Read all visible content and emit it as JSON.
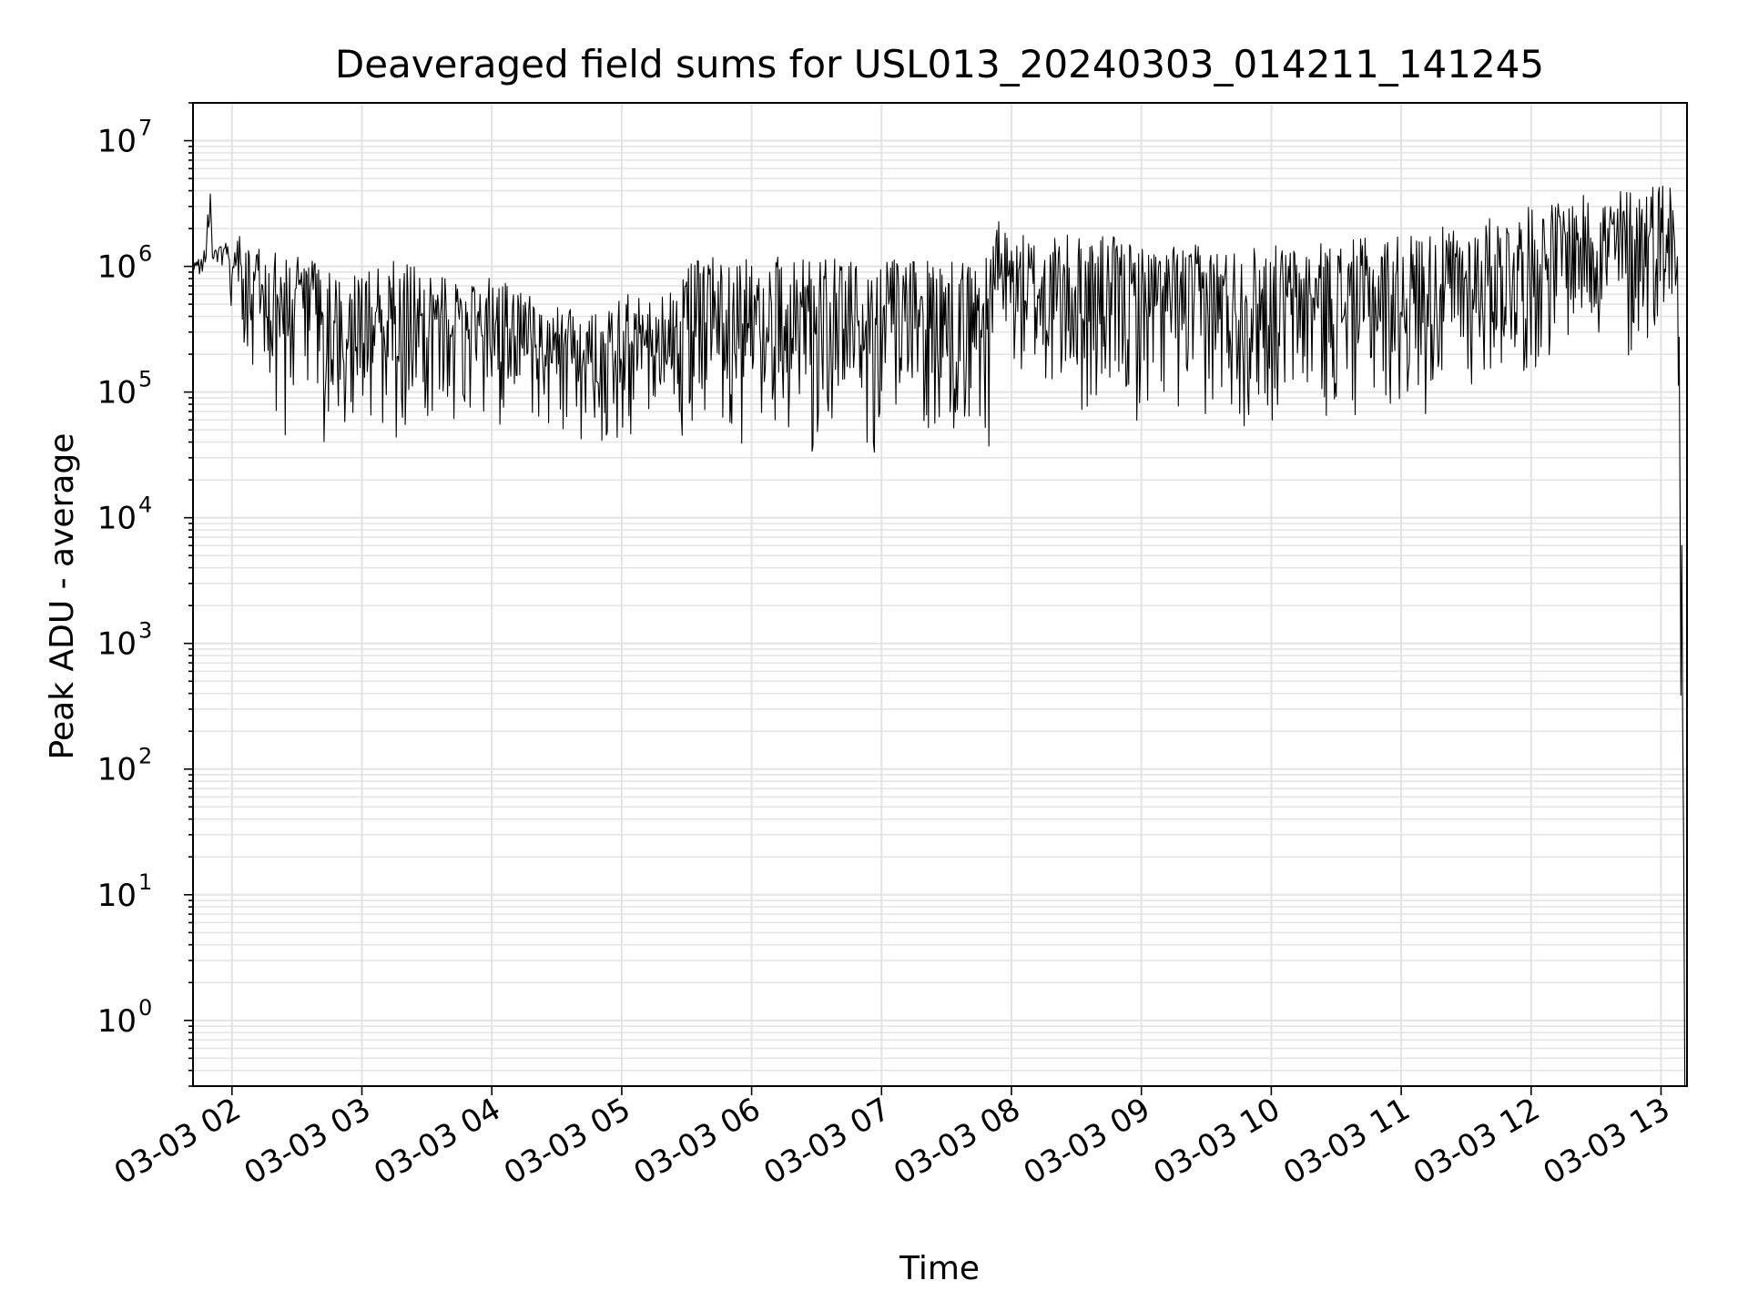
{
  "chart_data": {
    "type": "line",
    "title": "Deaveraged field sums for USL013_20240303_014211_141245",
    "xlabel": "Time",
    "ylabel": "Peak ADU - average",
    "yscale": "log",
    "ylim": [
      0.3,
      20000000
    ],
    "xlim": [
      "2024-03-03 01:42",
      "2024-03-03 13:12"
    ],
    "grid": true,
    "grid_color": "#e3e3e3",
    "line_color": "#000000",
    "x_ticks": [
      {
        "t": "2024-03-03 02:00",
        "label": "03-03 02"
      },
      {
        "t": "2024-03-03 03:00",
        "label": "03-03 03"
      },
      {
        "t": "2024-03-03 04:00",
        "label": "03-03 04"
      },
      {
        "t": "2024-03-03 05:00",
        "label": "03-03 05"
      },
      {
        "t": "2024-03-03 06:00",
        "label": "03-03 06"
      },
      {
        "t": "2024-03-03 07:00",
        "label": "03-03 07"
      },
      {
        "t": "2024-03-03 08:00",
        "label": "03-03 08"
      },
      {
        "t": "2024-03-03 09:00",
        "label": "03-03 09"
      },
      {
        "t": "2024-03-03 10:00",
        "label": "03-03 10"
      },
      {
        "t": "2024-03-03 11:00",
        "label": "03-03 11"
      },
      {
        "t": "2024-03-03 12:00",
        "label": "03-03 12"
      },
      {
        "t": "2024-03-03 13:00",
        "label": "03-03 13"
      }
    ],
    "y_ticks": [
      {
        "value": 1,
        "base": "10",
        "exp": "0"
      },
      {
        "value": 10,
        "base": "10",
        "exp": "1"
      },
      {
        "value": 100,
        "base": "10",
        "exp": "2"
      },
      {
        "value": 1000,
        "base": "10",
        "exp": "3"
      },
      {
        "value": 10000,
        "base": "10",
        "exp": "4"
      },
      {
        "value": 100000,
        "base": "10",
        "exp": "5"
      },
      {
        "value": 1000000,
        "base": "10",
        "exp": "6"
      },
      {
        "value": 10000000,
        "base": "10",
        "exp": "7"
      }
    ],
    "series": [
      {
        "x": [
          "2024-03-03 01:42",
          "2024-03-03 01:45",
          "2024-03-03 01:48",
          "2024-03-03 01:50",
          "2024-03-03 01:51",
          "2024-03-03 01:52",
          "2024-03-03 01:55",
          "2024-03-03 01:58",
          "2024-03-03 02:00",
          "2024-03-03 02:03",
          "2024-03-03 02:04",
          "2024-03-03 02:06",
          "2024-03-03 02:08",
          "2024-03-03 02:10",
          "2024-03-03 02:15",
          "2024-03-03 02:20",
          "2024-03-03 02:25",
          "2024-03-03 02:30",
          "2024-03-03 02:35",
          "2024-03-03 02:40",
          "2024-03-03 02:50",
          "2024-03-03 03:00",
          "2024-03-03 03:15",
          "2024-03-03 03:30",
          "2024-03-03 03:45",
          "2024-03-03 04:00",
          "2024-03-03 04:15",
          "2024-03-03 04:30",
          "2024-03-03 04:45",
          "2024-03-03 05:00",
          "2024-03-03 05:15",
          "2024-03-03 05:30",
          "2024-03-03 05:45",
          "2024-03-03 06:00",
          "2024-03-03 06:15",
          "2024-03-03 06:30",
          "2024-03-03 06:45",
          "2024-03-03 07:00",
          "2024-03-03 07:15",
          "2024-03-03 07:30",
          "2024-03-03 07:45",
          "2024-03-03 07:50",
          "2024-03-03 07:52",
          "2024-03-03 08:00",
          "2024-03-03 08:15",
          "2024-03-03 08:30",
          "2024-03-03 08:45",
          "2024-03-03 09:00",
          "2024-03-03 09:15",
          "2024-03-03 09:30",
          "2024-03-03 09:45",
          "2024-03-03 10:00",
          "2024-03-03 10:15",
          "2024-03-03 10:30",
          "2024-03-03 10:45",
          "2024-03-03 11:00",
          "2024-03-03 11:15",
          "2024-03-03 11:30",
          "2024-03-03 11:45",
          "2024-03-03 12:00",
          "2024-03-03 12:15",
          "2024-03-03 12:30",
          "2024-03-03 12:45",
          "2024-03-03 13:00",
          "2024-03-03 13:05",
          "2024-03-03 13:08",
          "2024-03-03 13:10",
          "2024-03-03 13:11"
        ],
        "lo": [
          700000,
          800000,
          900000,
          1000000,
          350000,
          900000,
          1000000,
          800000,
          400000,
          300000,
          100000,
          200000,
          150000,
          100000,
          60000,
          50000,
          40000,
          40000,
          35000,
          35000,
          40000,
          40000,
          40000,
          40000,
          50000,
          45000,
          45000,
          40000,
          35000,
          30000,
          30000,
          35000,
          30000,
          28000,
          30000,
          30000,
          30000,
          30000,
          30000,
          35000,
          35000,
          35000,
          200000,
          100000,
          60000,
          50000,
          40000,
          50000,
          50000,
          50000,
          40000,
          45000,
          50000,
          50000,
          50000,
          55000,
          60000,
          70000,
          100000,
          100000,
          200000,
          200000,
          100000,
          300000,
          200000,
          50000,
          10,
          0.3
        ],
        "hi": [
          1100000,
          1200000,
          1500000,
          8500000,
          1300000,
          1400000,
          1600000,
          1500000,
          900000,
          2900000,
          1700000,
          1800000,
          1500000,
          1400000,
          1400000,
          1300000,
          1300000,
          1200000,
          1200000,
          1100000,
          1000000,
          900000,
          1100000,
          1100000,
          700000,
          900000,
          600000,
          500000,
          400000,
          700000,
          500000,
          1100000,
          1200000,
          1200000,
          1200000,
          1200000,
          1200000,
          1200000,
          1100000,
          1100000,
          1200000,
          1200000,
          2500000,
          1800000,
          1800000,
          1800000,
          1800000,
          1500000,
          1500000,
          1500000,
          1500000,
          1500000,
          1500000,
          1600000,
          1700000,
          1800000,
          2000000,
          2200000,
          2600000,
          3000000,
          3500000,
          3800000,
          4500000,
          5000000,
          5200000,
          2000000,
          60000,
          0.8
        ]
      }
    ]
  }
}
